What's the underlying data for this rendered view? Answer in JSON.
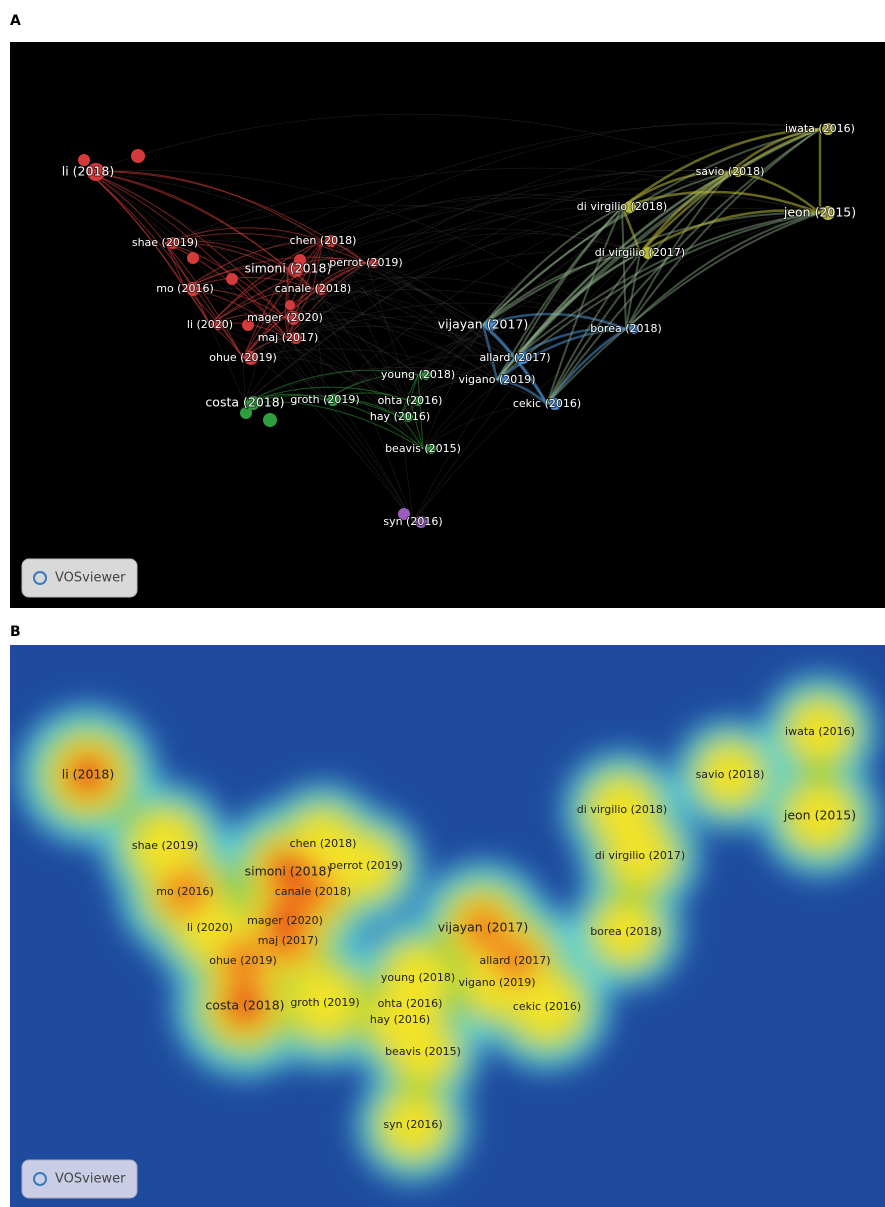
{
  "panels": [
    {
      "label": "A"
    },
    {
      "label": "B"
    }
  ],
  "logo": "VOSviewer",
  "nodes": [
    {
      "label": "li (2018)",
      "color": "#d43a3a"
    },
    {
      "label": "shae (2019)",
      "color": "#d43a3a"
    },
    {
      "label": "mo (2016)",
      "color": "#d43a3a"
    },
    {
      "label": "li (2020)",
      "color": "#d43a3a"
    },
    {
      "label": "ohue (2019)",
      "color": "#d43a3a"
    },
    {
      "label": "mager (2020)",
      "color": "#d43a3a"
    },
    {
      "label": "maj (2017)",
      "color": "#d43a3a"
    },
    {
      "label": "simoni (2018)",
      "color": "#d43a3a"
    },
    {
      "label": "chen (2018)",
      "color": "#d43a3a"
    },
    {
      "label": "canale (2018)",
      "color": "#d43a3a"
    },
    {
      "label": "perrot (2019)",
      "color": "#d43a3a"
    },
    {
      "label": "costa (2018)",
      "color": "#2e9e3e"
    },
    {
      "label": "groth (2019)",
      "color": "#2e9e3e"
    },
    {
      "label": "young (2018)",
      "color": "#2e9e3e"
    },
    {
      "label": "ohta (2016)",
      "color": "#2e9e3e"
    },
    {
      "label": "hay (2016)",
      "color": "#2e9e3e"
    },
    {
      "label": "beavis (2015)",
      "color": "#2e9e3e"
    },
    {
      "label": "vijayan (2017)",
      "color": "#4a90d0"
    },
    {
      "label": "allard (2017)",
      "color": "#4a90d0"
    },
    {
      "label": "vigano (2019)",
      "color": "#4a90d0"
    },
    {
      "label": "cekic (2016)",
      "color": "#4a90d0"
    },
    {
      "label": "borea (2018)",
      "color": "#4a90d0"
    },
    {
      "label": "di virgilio (2018)",
      "color": "#b8b83a"
    },
    {
      "label": "di virgilio (2017)",
      "color": "#b8b83a"
    },
    {
      "label": "savio (2018)",
      "color": "#b8b83a"
    },
    {
      "label": "iwata (2016)",
      "color": "#b8b83a"
    },
    {
      "label": "jeon (2015)",
      "color": "#b8b83a"
    },
    {
      "label": "syn (2016)",
      "color": "#9a5cc0"
    }
  ]
}
